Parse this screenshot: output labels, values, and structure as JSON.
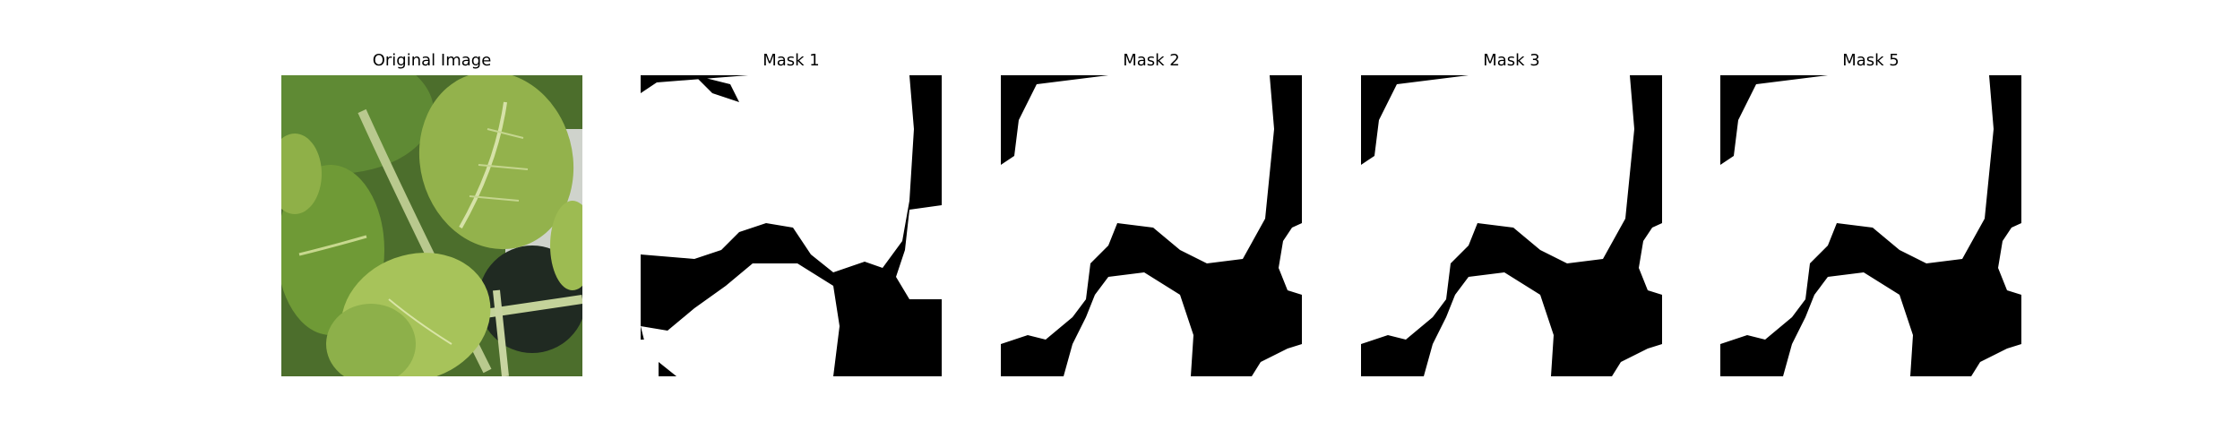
{
  "figure": {
    "panels": [
      {
        "id": "original",
        "title": "Original Image"
      },
      {
        "id": "mask-1",
        "title": "Mask 1"
      },
      {
        "id": "mask-2",
        "title": "Mask 2"
      },
      {
        "id": "mask-3",
        "title": "Mask 3"
      },
      {
        "id": "mask-5",
        "title": "Mask 5"
      }
    ],
    "colors": {
      "background": "#ffffff",
      "mask_foreground": "#ffffff",
      "mask_background": "#000000",
      "leaf_light": "#a6c25a",
      "leaf_mid": "#7fa33c",
      "leaf_dark": "#3e6020"
    }
  }
}
